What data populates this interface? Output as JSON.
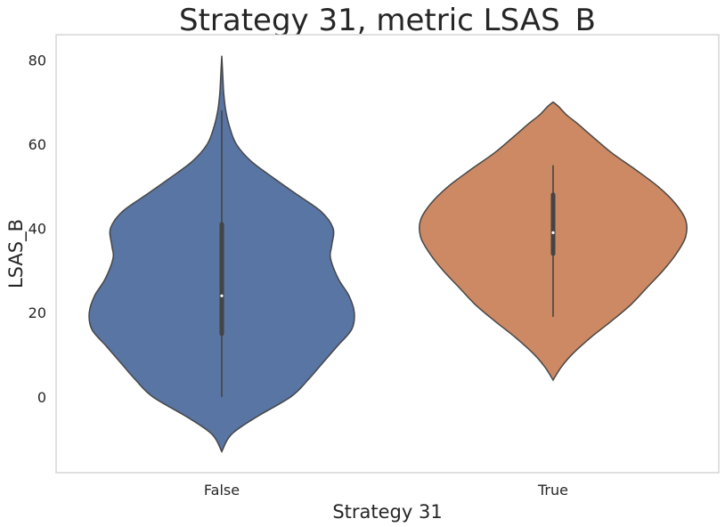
{
  "chart_data": {
    "type": "violin",
    "title": "Strategy 31, metric LSAS_B",
    "xlabel": "Strategy 31",
    "ylabel": "LSAS_B",
    "categories": [
      "False",
      "True"
    ],
    "ylim": [
      -18,
      86
    ],
    "yticks": [
      0,
      20,
      40,
      60,
      80
    ],
    "ytick_labels": [
      "0",
      "20",
      "40",
      "60",
      "80"
    ],
    "grid": false,
    "colors": [
      "#5875a4",
      "#cc8963"
    ],
    "series": [
      {
        "category": "False",
        "min": -13,
        "max": 81,
        "whisker_low": 0,
        "whisker_high": 68,
        "q1": 15,
        "median": 24,
        "q3": 41,
        "density": [
          [
            -13,
            0.0
          ],
          [
            -9,
            0.07
          ],
          [
            -5,
            0.25
          ],
          [
            0,
            0.52
          ],
          [
            4,
            0.65
          ],
          [
            8,
            0.76
          ],
          [
            12,
            0.87
          ],
          [
            16,
            0.98
          ],
          [
            20,
            1.0
          ],
          [
            24,
            0.96
          ],
          [
            28,
            0.88
          ],
          [
            33,
            0.82
          ],
          [
            36,
            0.83
          ],
          [
            40,
            0.84
          ],
          [
            44,
            0.75
          ],
          [
            48,
            0.57
          ],
          [
            52,
            0.39
          ],
          [
            56,
            0.22
          ],
          [
            60,
            0.11
          ],
          [
            64,
            0.06
          ],
          [
            68,
            0.03
          ],
          [
            72,
            0.015
          ],
          [
            76,
            0.008
          ],
          [
            81,
            0.0
          ]
        ]
      },
      {
        "category": "True",
        "min": 4,
        "max": 70,
        "whisker_low": 19,
        "whisker_high": 55,
        "q1": 34,
        "median": 39,
        "q3": 48,
        "density": [
          [
            4,
            0.0
          ],
          [
            7,
            0.06
          ],
          [
            10,
            0.14
          ],
          [
            14,
            0.28
          ],
          [
            18,
            0.44
          ],
          [
            22,
            0.59
          ],
          [
            26,
            0.71
          ],
          [
            30,
            0.83
          ],
          [
            34,
            0.93
          ],
          [
            38,
            1.0
          ],
          [
            42,
            1.0
          ],
          [
            46,
            0.92
          ],
          [
            50,
            0.79
          ],
          [
            54,
            0.62
          ],
          [
            58,
            0.44
          ],
          [
            62,
            0.29
          ],
          [
            65,
            0.18
          ],
          [
            67,
            0.1
          ],
          [
            69,
            0.04
          ],
          [
            70,
            0.0
          ]
        ]
      }
    ]
  }
}
